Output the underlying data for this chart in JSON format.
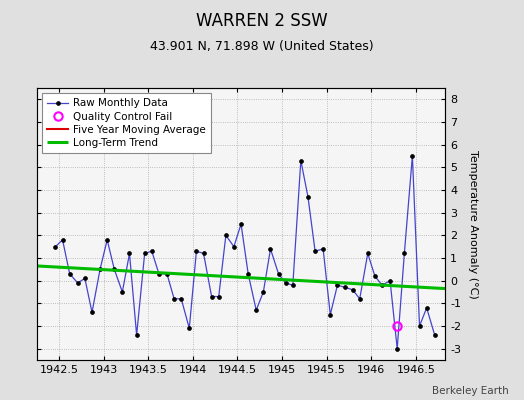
{
  "title": "WARREN 2 SSW",
  "subtitle": "43.901 N, 71.898 W (United States)",
  "watermark": "Berkeley Earth",
  "ylabel": "Temperature Anomaly (°C)",
  "ylim": [
    -3.5,
    8.5
  ],
  "yticks": [
    -3,
    -2,
    -1,
    0,
    1,
    2,
    3,
    4,
    5,
    6,
    7,
    8
  ],
  "xlim": [
    1942.25,
    1946.83
  ],
  "xticks": [
    1942.5,
    1943.0,
    1943.5,
    1944.0,
    1944.5,
    1945.0,
    1945.5,
    1946.0,
    1946.5
  ],
  "xticklabels": [
    "1942.5",
    "1943",
    "1943.5",
    "1944",
    "1944.5",
    "1945",
    "1945.5",
    "1946",
    "1946.5"
  ],
  "raw_x": [
    1942.46,
    1942.54,
    1942.62,
    1942.71,
    1942.79,
    1942.87,
    1942.96,
    1943.04,
    1943.12,
    1943.21,
    1943.29,
    1943.37,
    1943.46,
    1943.54,
    1943.62,
    1943.71,
    1943.79,
    1943.87,
    1943.96,
    1944.04,
    1944.12,
    1944.21,
    1944.29,
    1944.37,
    1944.46,
    1944.54,
    1944.62,
    1944.71,
    1944.79,
    1944.87,
    1944.96,
    1945.04,
    1945.12,
    1945.21,
    1945.29,
    1945.37,
    1945.46,
    1945.54,
    1945.62,
    1945.71,
    1945.79,
    1945.87,
    1945.96,
    1946.04,
    1946.12,
    1946.21,
    1946.29,
    1946.37,
    1946.46,
    1946.54,
    1946.62,
    1946.71
  ],
  "raw_y": [
    1.5,
    1.8,
    0.3,
    -0.1,
    0.1,
    -1.4,
    0.5,
    1.8,
    0.5,
    -0.5,
    1.2,
    -2.4,
    1.2,
    1.3,
    0.3,
    0.3,
    -0.8,
    -0.8,
    -2.1,
    1.3,
    1.2,
    -0.7,
    -0.7,
    2.0,
    1.5,
    2.5,
    0.3,
    -1.3,
    -0.5,
    1.4,
    0.3,
    -0.1,
    -0.2,
    5.3,
    3.7,
    1.3,
    1.4,
    -1.5,
    -0.2,
    -0.3,
    -0.4,
    -0.8,
    1.2,
    0.2,
    -0.2,
    0.0,
    -3.0,
    1.2,
    5.5,
    -2.0,
    -1.2,
    -2.4
  ],
  "qc_fail_x": [
    1946.29
  ],
  "qc_fail_y": [
    -2.0
  ],
  "trend_x": [
    1942.25,
    1946.83
  ],
  "trend_y": [
    0.65,
    -0.35
  ],
  "bg_color": "#e0e0e0",
  "plot_bg_color": "#f5f5f5",
  "raw_line_color": "#4444cc",
  "raw_marker_color": "#000000",
  "trend_color": "#00bb00",
  "mavg_color": "#dd0000",
  "qc_color": "#ff00ff",
  "title_fontsize": 12,
  "subtitle_fontsize": 9,
  "label_fontsize": 8,
  "tick_fontsize": 8,
  "legend_fontsize": 7.5
}
